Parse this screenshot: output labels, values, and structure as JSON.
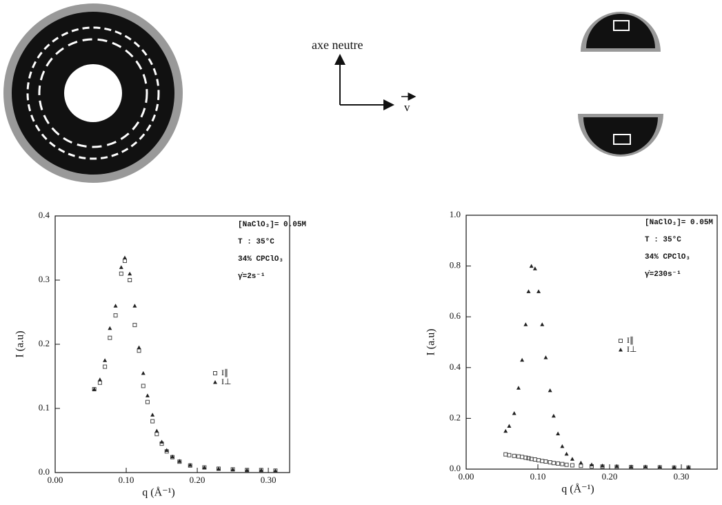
{
  "diagram_labels": {
    "axis": "axe neutre",
    "vector": "v"
  },
  "chart_data": [
    {
      "type": "scatter",
      "annotations": [
        "[NaClO₃]= 0.05M",
        "T  :  35°C",
        "34%  CPClO₃",
        "γ̇=2s⁻¹"
      ],
      "xlabel": "q  (Å⁻¹)",
      "ylabel": "I  (a.u)",
      "xlim": [
        0,
        0.33
      ],
      "ylim": [
        0,
        0.4
      ],
      "xticks": [
        {
          "value": 0,
          "label": "0.00"
        },
        {
          "value": 0.1,
          "label": "0.10"
        },
        {
          "value": 0.2,
          "label": "0.20"
        },
        {
          "value": 0.3,
          "label": "0.30"
        }
      ],
      "yticks": [
        {
          "value": 0,
          "label": "0.0"
        },
        {
          "value": 0.1,
          "label": "0.1"
        },
        {
          "value": 0.2,
          "label": "0.2"
        },
        {
          "value": 0.3,
          "label": "0.3"
        },
        {
          "value": 0.4,
          "label": "0.4"
        }
      ],
      "x": [
        0.055,
        0.063,
        0.07,
        0.077,
        0.085,
        0.093,
        0.098,
        0.105,
        0.112,
        0.118,
        0.124,
        0.13,
        0.137,
        0.143,
        0.15,
        0.157,
        0.165,
        0.175,
        0.19,
        0.21,
        0.23,
        0.25,
        0.27,
        0.29,
        0.31
      ],
      "series": [
        {
          "name": "I∥",
          "color": "#444444",
          "marker": "square",
          "values": [
            0.13,
            0.14,
            0.165,
            0.21,
            0.245,
            0.31,
            0.33,
            0.3,
            0.23,
            0.19,
            0.135,
            0.11,
            0.08,
            0.06,
            0.045,
            0.033,
            0.024,
            0.017,
            0.011,
            0.008,
            0.006,
            0.005,
            0.004,
            0.004,
            0.003
          ]
        },
        {
          "name": "I⊥",
          "color": "#222222",
          "marker": "triangle",
          "values": [
            0.13,
            0.145,
            0.175,
            0.225,
            0.26,
            0.32,
            0.335,
            0.31,
            0.26,
            0.195,
            0.155,
            0.12,
            0.09,
            0.065,
            0.048,
            0.035,
            0.025,
            0.018,
            0.012,
            0.008,
            0.006,
            0.005,
            0.004,
            0.004,
            0.003
          ]
        }
      ]
    },
    {
      "type": "scatter",
      "annotations": [
        "[NaClO₃]= 0.05M",
        "T  :  35°C",
        "34%  CPClO₃",
        "γ̇=230s⁻¹"
      ],
      "xlabel": "q  (Å⁻¹)",
      "ylabel": "I  (a.u)",
      "xlim": [
        0,
        0.35
      ],
      "ylim": [
        0,
        1.0
      ],
      "xticks": [
        {
          "value": 0,
          "label": "0.00"
        },
        {
          "value": 0.1,
          "label": "0.10"
        },
        {
          "value": 0.2,
          "label": "0.20"
        },
        {
          "value": 0.3,
          "label": "0.30"
        }
      ],
      "yticks": [
        {
          "value": 0,
          "label": "0.0"
        },
        {
          "value": 0.2,
          "label": "0.2"
        },
        {
          "value": 0.4,
          "label": "0.4"
        },
        {
          "value": 0.6,
          "label": "0.6"
        },
        {
          "value": 0.8,
          "label": "0.8"
        },
        {
          "value": 1.0,
          "label": "1.0"
        }
      ],
      "x": [
        0.055,
        0.06,
        0.067,
        0.073,
        0.078,
        0.083,
        0.087,
        0.091,
        0.096,
        0.101,
        0.106,
        0.111,
        0.117,
        0.122,
        0.128,
        0.134,
        0.14,
        0.148,
        0.16,
        0.175,
        0.19,
        0.21,
        0.23,
        0.25,
        0.27,
        0.29,
        0.31
      ],
      "series": [
        {
          "name": "I∥",
          "color": "#444444",
          "marker": "square",
          "values": [
            0.058,
            0.055,
            0.052,
            0.05,
            0.048,
            0.045,
            0.043,
            0.04,
            0.038,
            0.035,
            0.032,
            0.03,
            0.027,
            0.024,
            0.022,
            0.02,
            0.017,
            0.015,
            0.013,
            0.011,
            0.01,
            0.009,
            0.008,
            0.007,
            0.007,
            0.006,
            0.006
          ]
        },
        {
          "name": "I⊥",
          "color": "#222222",
          "marker": "triangle",
          "values": [
            0.15,
            0.17,
            0.22,
            0.32,
            0.43,
            0.57,
            0.7,
            0.8,
            0.79,
            0.7,
            0.57,
            0.44,
            0.31,
            0.21,
            0.14,
            0.09,
            0.06,
            0.04,
            0.025,
            0.018,
            0.014,
            0.012,
            0.01,
            0.01,
            0.009,
            0.008,
            0.008
          ]
        }
      ]
    }
  ]
}
